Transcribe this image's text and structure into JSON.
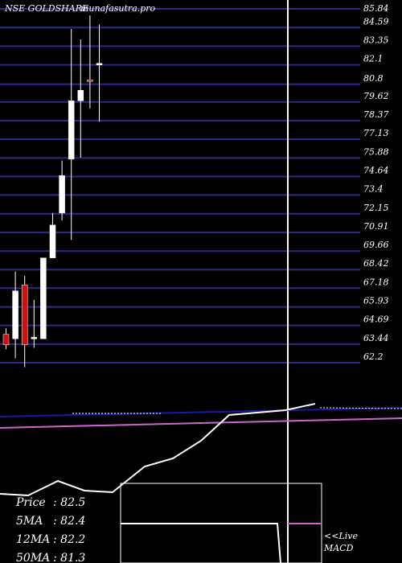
{
  "chart_data": {
    "type": "candlestick",
    "title": "NSE GOLDSHARE",
    "watermark": "munafasutra.pro",
    "top_right_label": "85.84",
    "y_ticks": [
      84.59,
      83.35,
      82.1,
      80.8,
      79.62,
      78.37,
      77.13,
      75.88,
      74.64,
      73.4,
      72.15,
      70.91,
      69.66,
      68.42,
      67.18,
      65.93,
      64.69,
      63.44,
      62.2
    ],
    "ylim": [
      62.2,
      85.84
    ],
    "grid": true,
    "candles": [
      {
        "open": 64.1,
        "close": 63.4,
        "high": 64.5,
        "low": 63.1,
        "color": "red"
      },
      {
        "open": 63.8,
        "close": 67.0,
        "high": 68.3,
        "low": 62.5,
        "color": "white"
      },
      {
        "open": 67.4,
        "close": 63.4,
        "high": 68.0,
        "low": 61.9,
        "color": "red"
      },
      {
        "open": 63.8,
        "close": 63.9,
        "high": 66.4,
        "low": 63.2,
        "color": "white"
      },
      {
        "open": 63.8,
        "close": 69.2,
        "high": 69.2,
        "low": 63.8,
        "color": "white"
      },
      {
        "open": 69.2,
        "close": 71.4,
        "high": 72.2,
        "low": 69.2,
        "color": "white"
      },
      {
        "open": 72.2,
        "close": 74.7,
        "high": 75.7,
        "low": 71.7,
        "color": "white"
      },
      {
        "open": 75.8,
        "close": 79.7,
        "high": 84.5,
        "low": 70.4,
        "color": "white"
      },
      {
        "open": 79.7,
        "close": 80.4,
        "high": 83.8,
        "low": 75.9,
        "color": "white"
      },
      {
        "open": 81.1,
        "close": 81.0,
        "high": 85.4,
        "low": 79.2,
        "color": "red"
      },
      {
        "open": 82.1,
        "close": 82.2,
        "high": 84.8,
        "low": 78.3,
        "color": "white"
      }
    ],
    "stats": [
      {
        "label": "Price",
        "value": ": 82.5"
      },
      {
        "label": "5MA",
        "value": ": 82.4"
      },
      {
        "label": "12MA",
        "value": ": 82.2"
      },
      {
        "label": "50MA",
        "value": ": 81.3"
      }
    ],
    "macd_label": "<<Live MACD",
    "colors": {
      "background": "#000000",
      "grid": "#2a2a8a",
      "up": "#ffffff",
      "down": "#cc1111",
      "ma_blue": "#1a1aa0",
      "ma_purple": "#cc66cc",
      "divider": "#ffffff",
      "text": "#ffffff"
    }
  }
}
